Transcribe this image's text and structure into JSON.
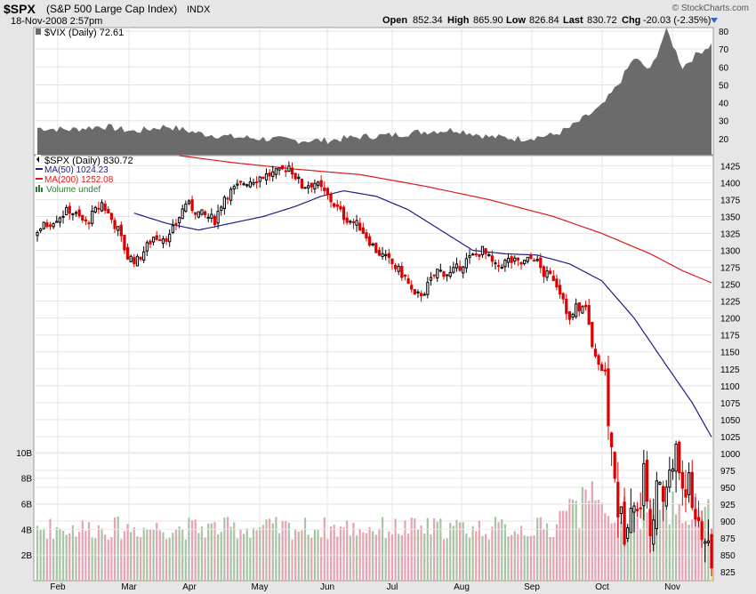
{
  "header": {
    "symbol": "$SPX",
    "name": "(S&P 500 Large Cap Index)",
    "exchange": "INDX",
    "datetime": "18-Nov-2008 2:57pm",
    "watermark": "© StockCharts.com",
    "quote": {
      "open_label": "Open",
      "open": "852.34",
      "high_label": "High",
      "high": "865.90",
      "low_label": "Low",
      "low": "826.84",
      "last_label": "Last",
      "last": "830.72",
      "chg_label": "Chg",
      "chg": "-20.03 (-2.35%)"
    }
  },
  "vix_panel": {
    "legend": "$VIX (Daily) 72.61"
  },
  "price_panel": {
    "legend_main": "$SPX (Daily) 830.72",
    "legend_ma50": "MA(50) 1024.23",
    "legend_ma200": "MA(200) 1252.08",
    "legend_volume": "Volume undef"
  },
  "colors": {
    "up_candle": "#000000",
    "down_candle": "#dd0000",
    "ma50": "#1c1c8c",
    "ma200": "#dd1a1a",
    "vix_fill": "#6b6b6b",
    "volume_up": "#a9c4a4",
    "volume_down": "#e6a3b4",
    "volume_last": "#f5e16a",
    "panel_bg": "#ffffff",
    "page_bg": "#e6e6e6"
  },
  "chart_data": {
    "type": "candlestick",
    "period": "daily",
    "months": [
      "Feb",
      "Mar",
      "Apr",
      "May",
      "Jun",
      "Jul",
      "Aug",
      "Sep",
      "Oct",
      "Nov"
    ],
    "price_axis": {
      "ticks": [
        825,
        850,
        875,
        900,
        925,
        950,
        975,
        1000,
        1025,
        1050,
        1075,
        1100,
        1125,
        1150,
        1175,
        1200,
        1225,
        1250,
        1275,
        1300,
        1325,
        1350,
        1375,
        1400,
        1425
      ],
      "range": [
        812,
        1440
      ]
    },
    "volume_axis": {
      "ticks": [
        "2B",
        "4B",
        "6B",
        "8B",
        "10B"
      ],
      "values": [
        2,
        4,
        6,
        8,
        10
      ],
      "range": [
        0,
        11.3
      ]
    },
    "vix_axis": {
      "ticks": [
        20,
        30,
        40,
        50,
        60,
        70,
        80
      ],
      "range": [
        11,
        82
      ]
    },
    "close_anchors": [
      {
        "day": 0,
        "close": 1330
      },
      {
        "day": 10,
        "close": 1360
      },
      {
        "day": 15,
        "close": 1340
      },
      {
        "day": 20,
        "close": 1370
      },
      {
        "day": 25,
        "close": 1330
      },
      {
        "day": 28,
        "close": 1290
      },
      {
        "day": 31,
        "close": 1285
      },
      {
        "day": 36,
        "close": 1320
      },
      {
        "day": 41,
        "close": 1320
      },
      {
        "day": 46,
        "close": 1370
      },
      {
        "day": 50,
        "close": 1355
      },
      {
        "day": 55,
        "close": 1345
      },
      {
        "day": 58,
        "close": 1380
      },
      {
        "day": 64,
        "close": 1400
      },
      {
        "day": 70,
        "close": 1410
      },
      {
        "day": 75,
        "close": 1415
      },
      {
        "day": 78,
        "close": 1425
      },
      {
        "day": 82,
        "close": 1395
      },
      {
        "day": 86,
        "close": 1400
      },
      {
        "day": 90,
        "close": 1380
      },
      {
        "day": 95,
        "close": 1350
      },
      {
        "day": 100,
        "close": 1335
      },
      {
        "day": 105,
        "close": 1300
      },
      {
        "day": 110,
        "close": 1280
      },
      {
        "day": 114,
        "close": 1260
      },
      {
        "day": 117,
        "close": 1230
      },
      {
        "day": 120,
        "close": 1240
      },
      {
        "day": 124,
        "close": 1270
      },
      {
        "day": 128,
        "close": 1265
      },
      {
        "day": 133,
        "close": 1285
      },
      {
        "day": 138,
        "close": 1300
      },
      {
        "day": 142,
        "close": 1275
      },
      {
        "day": 146,
        "close": 1285
      },
      {
        "day": 150,
        "close": 1280
      },
      {
        "day": 154,
        "close": 1290
      },
      {
        "day": 157,
        "close": 1265
      },
      {
        "day": 160,
        "close": 1260
      },
      {
        "day": 163,
        "close": 1230
      },
      {
        "day": 165,
        "close": 1195
      },
      {
        "day": 167,
        "close": 1215
      },
      {
        "day": 170,
        "close": 1215
      },
      {
        "day": 172,
        "close": 1155
      },
      {
        "day": 174,
        "close": 1135
      },
      {
        "day": 176,
        "close": 1100
      },
      {
        "day": 178,
        "close": 1000
      },
      {
        "day": 180,
        "close": 920
      },
      {
        "day": 182,
        "close": 885
      },
      {
        "day": 184,
        "close": 940
      },
      {
        "day": 186,
        "close": 905
      },
      {
        "day": 188,
        "close": 970
      },
      {
        "day": 190,
        "close": 900
      },
      {
        "day": 192,
        "close": 940
      },
      {
        "day": 194,
        "close": 940
      },
      {
        "day": 196,
        "close": 968
      },
      {
        "day": 198,
        "close": 1000
      },
      {
        "day": 200,
        "close": 955
      },
      {
        "day": 202,
        "close": 950
      },
      {
        "day": 204,
        "close": 910
      },
      {
        "day": 206,
        "close": 890
      },
      {
        "day": 208,
        "close": 850
      },
      {
        "day": 209,
        "close": 830.72
      }
    ],
    "ma50_anchors": [
      {
        "day": 30,
        "close": 1355
      },
      {
        "day": 40,
        "close": 1340
      },
      {
        "day": 50,
        "close": 1330
      },
      {
        "day": 60,
        "close": 1340
      },
      {
        "day": 70,
        "close": 1350
      },
      {
        "day": 80,
        "close": 1365
      },
      {
        "day": 88,
        "close": 1380
      },
      {
        "day": 95,
        "close": 1388
      },
      {
        "day": 105,
        "close": 1380
      },
      {
        "day": 115,
        "close": 1360
      },
      {
        "day": 125,
        "close": 1330
      },
      {
        "day": 135,
        "close": 1300
      },
      {
        "day": 145,
        "close": 1295
      },
      {
        "day": 155,
        "close": 1293
      },
      {
        "day": 165,
        "close": 1280
      },
      {
        "day": 175,
        "close": 1255
      },
      {
        "day": 185,
        "close": 1200
      },
      {
        "day": 195,
        "close": 1130
      },
      {
        "day": 203,
        "close": 1075
      },
      {
        "day": 209,
        "close": 1024.23
      }
    ],
    "ma200_anchors": [
      {
        "day": 44,
        "close": 1440
      },
      {
        "day": 60,
        "close": 1430
      },
      {
        "day": 80,
        "close": 1420
      },
      {
        "day": 100,
        "close": 1412
      },
      {
        "day": 120,
        "close": 1395
      },
      {
        "day": 140,
        "close": 1375
      },
      {
        "day": 160,
        "close": 1350
      },
      {
        "day": 175,
        "close": 1325
      },
      {
        "day": 190,
        "close": 1295
      },
      {
        "day": 200,
        "close": 1270
      },
      {
        "day": 209,
        "close": 1252.08
      }
    ],
    "vix_anchors": [
      {
        "day": 0,
        "close": 26
      },
      {
        "day": 10,
        "close": 25
      },
      {
        "day": 20,
        "close": 27
      },
      {
        "day": 30,
        "close": 24
      },
      {
        "day": 40,
        "close": 27
      },
      {
        "day": 50,
        "close": 23
      },
      {
        "day": 60,
        "close": 21
      },
      {
        "day": 70,
        "close": 20
      },
      {
        "day": 80,
        "close": 19
      },
      {
        "day": 90,
        "close": 19
      },
      {
        "day": 100,
        "close": 21
      },
      {
        "day": 110,
        "close": 22
      },
      {
        "day": 120,
        "close": 24
      },
      {
        "day": 130,
        "close": 25
      },
      {
        "day": 140,
        "close": 21
      },
      {
        "day": 150,
        "close": 20
      },
      {
        "day": 160,
        "close": 22
      },
      {
        "day": 165,
        "close": 26
      },
      {
        "day": 170,
        "close": 32
      },
      {
        "day": 175,
        "close": 38
      },
      {
        "day": 180,
        "close": 50
      },
      {
        "day": 185,
        "close": 65
      },
      {
        "day": 190,
        "close": 58
      },
      {
        "day": 195,
        "close": 81
      },
      {
        "day": 200,
        "close": 60
      },
      {
        "day": 205,
        "close": 68
      },
      {
        "day": 209,
        "close": 72.61
      }
    ]
  }
}
